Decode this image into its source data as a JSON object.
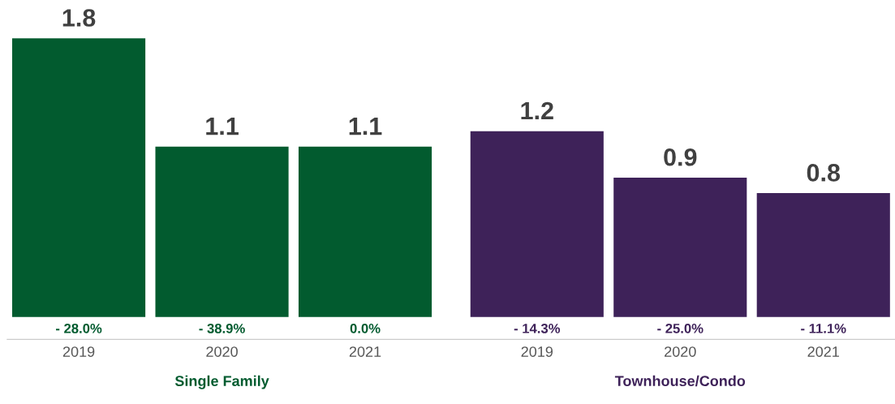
{
  "chart_data": {
    "type": "bar",
    "categories": [
      "2019",
      "2020",
      "2021",
      "2019",
      "2020",
      "2021"
    ],
    "series": [
      {
        "name": "Single Family",
        "color": "#025b2f",
        "values": [
          1.8,
          1.1,
          1.1,
          null,
          null,
          null
        ]
      },
      {
        "name": "Townhouse/Condo",
        "color": "#3e2259",
        "values": [
          null,
          null,
          null,
          1.2,
          0.9,
          0.8
        ]
      }
    ],
    "data_labels": true,
    "annotations": [
      "- 28.0%",
      "- 38.9%",
      "0.0%",
      "- 14.3%",
      "- 25.0%",
      "- 11.1%"
    ]
  }
}
